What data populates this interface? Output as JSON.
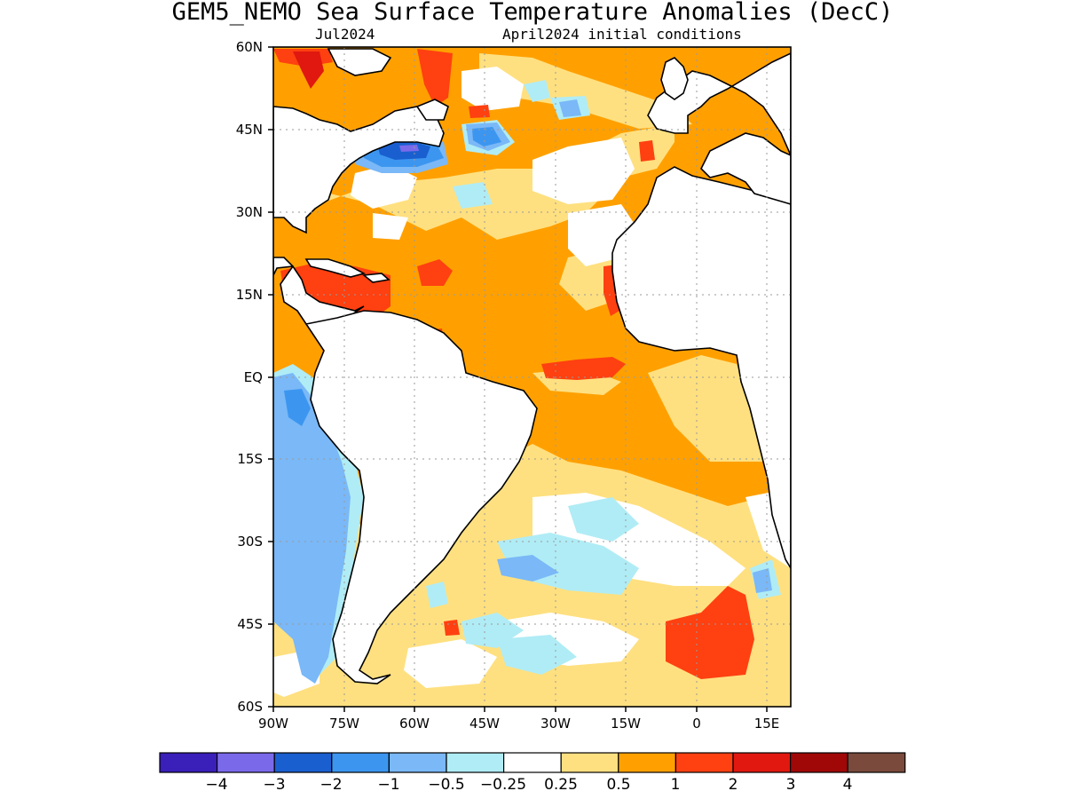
{
  "title": "GEM5_NEMO Sea Surface Temperature Anomalies (DecC)",
  "valid_month": "Jul2024",
  "initial_conditions": "April2024 initial conditions",
  "lat_labels": [
    "60N",
    "45N",
    "30N",
    "15N",
    "EQ",
    "15S",
    "30S",
    "45S",
    "60S"
  ],
  "lon_labels": [
    "90W",
    "75W",
    "60W",
    "45W",
    "30W",
    "15W",
    "0",
    "15E"
  ],
  "colorbar": {
    "colors": [
      "#3a1fb8",
      "#7a6aea",
      "#1a5fd0",
      "#3c96f0",
      "#7ab8f7",
      "#b0ecf5",
      "#ffffff",
      "#ffe080",
      "#ffa000",
      "#ff4010",
      "#e01810",
      "#a00808",
      "#7a4a3c"
    ],
    "labels": [
      "−4",
      "−3",
      "−2",
      "−1",
      "−0.5",
      "−0.25",
      "0.25",
      "0.5",
      "1",
      "2",
      "3",
      "4"
    ]
  },
  "map": {
    "ocean_default_color": "#ffa000",
    "land_color": "#ffffff",
    "coast_color": "#000000",
    "grid_color": "#9a9a9a",
    "grid": true
  }
}
